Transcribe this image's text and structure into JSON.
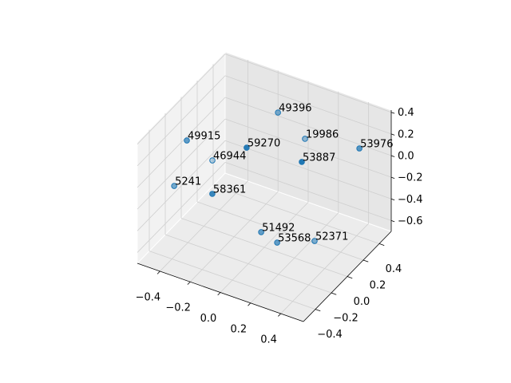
{
  "chart_data": {
    "type": "scatter3d",
    "x": [
      -0.114,
      0.029,
      0.402,
      -0.488,
      -0.1,
      0.212,
      -0.441,
      -0.507,
      -0.222,
      0.028,
      0.128,
      0.276
    ],
    "y": [
      0.387,
      0.455,
      0.431,
      -0.047,
      -0.032,
      0.069,
      0.184,
      -0.17,
      -0.231,
      -0.092,
      -0.081,
      0.108
    ],
    "z": [
      0.196,
      -0.028,
      0.084,
      0.084,
      0.196,
      0.14,
      -0.252,
      -0.252,
      -0.14,
      -0.476,
      -0.532,
      -0.588
    ],
    "labels": [
      "49396",
      "19986",
      "53976",
      "49915",
      "59270",
      "53887",
      "46944",
      "5241",
      "58361",
      "51492",
      "53568",
      "52371"
    ],
    "color": "#1f77b4",
    "xlim": [
      -0.55,
      0.55
    ],
    "ylim": [
      -0.55,
      0.55
    ],
    "zlim": [
      -0.7,
      0.42
    ],
    "xticks": [
      {
        "value": -0.4,
        "label": "−0.4"
      },
      {
        "value": -0.2,
        "label": "−0.2"
      },
      {
        "value": 0,
        "label": "0.0"
      },
      0.2,
      0.4
    ],
    "yticks": [
      {
        "value": -0.4,
        "label": "−0.4"
      },
      {
        "value": -0.2,
        "label": "−0.2"
      },
      {
        "value": 0,
        "label": "0.0"
      },
      0.2,
      0.4
    ],
    "zticks": [
      {
        "value": -0.6,
        "label": "−0.6"
      },
      {
        "value": -0.4,
        "label": "−0.4"
      },
      {
        "value": -0.2,
        "label": "−0.2"
      },
      {
        "value": 0,
        "label": "0.0"
      },
      0.2,
      0.4
    ],
    "grid": true
  }
}
